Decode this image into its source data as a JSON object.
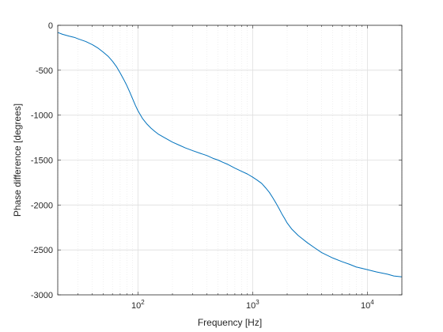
{
  "chart_data": {
    "type": "line",
    "title": "",
    "xlabel": "Frequency [Hz]",
    "ylabel": "Phase difference [degrees]",
    "xscale": "log",
    "xlim": [
      20,
      20000
    ],
    "ylim": [
      -3000,
      0
    ],
    "yticks": [
      0,
      -500,
      -1000,
      -1500,
      -2000,
      -2500,
      -3000
    ],
    "ytick_labels": [
      "0",
      "-500",
      "-1000",
      "-1500",
      "-2000",
      "-2500",
      "-3000"
    ],
    "xticks": [
      100,
      1000,
      10000
    ],
    "xtick_labels": [
      {
        "base": "10",
        "exp": "2"
      },
      {
        "base": "10",
        "exp": "3"
      },
      {
        "base": "10",
        "exp": "4"
      }
    ],
    "grid": true,
    "line_color": "#0072BD",
    "series": [
      {
        "x": [
          20,
          22,
          25,
          28,
          30,
          35,
          40,
          45,
          50,
          55,
          60,
          65,
          70,
          75,
          80,
          85,
          90,
          95,
          100,
          110,
          120,
          130,
          140,
          150,
          170,
          200,
          230,
          260,
          300,
          350,
          400,
          450,
          500,
          550,
          600,
          700,
          800,
          900,
          1000,
          1100,
          1200,
          1300,
          1400,
          1500,
          1600,
          1700,
          1800,
          1900,
          2000,
          2200,
          2500,
          3000,
          3500,
          4000,
          5000,
          6000,
          7000,
          8000,
          10000,
          12000,
          15000,
          17000,
          20000
        ],
        "y": [
          -80,
          -100,
          -120,
          -135,
          -150,
          -180,
          -215,
          -255,
          -300,
          -345,
          -400,
          -460,
          -530,
          -600,
          -670,
          -745,
          -820,
          -890,
          -950,
          -1040,
          -1100,
          -1145,
          -1180,
          -1210,
          -1250,
          -1300,
          -1335,
          -1365,
          -1395,
          -1425,
          -1450,
          -1480,
          -1500,
          -1525,
          -1545,
          -1590,
          -1625,
          -1655,
          -1690,
          -1725,
          -1760,
          -1810,
          -1860,
          -1920,
          -1980,
          -2040,
          -2100,
          -2150,
          -2200,
          -2270,
          -2340,
          -2420,
          -2480,
          -2530,
          -2590,
          -2630,
          -2660,
          -2690,
          -2720,
          -2745,
          -2770,
          -2790,
          -2800
        ]
      }
    ]
  }
}
